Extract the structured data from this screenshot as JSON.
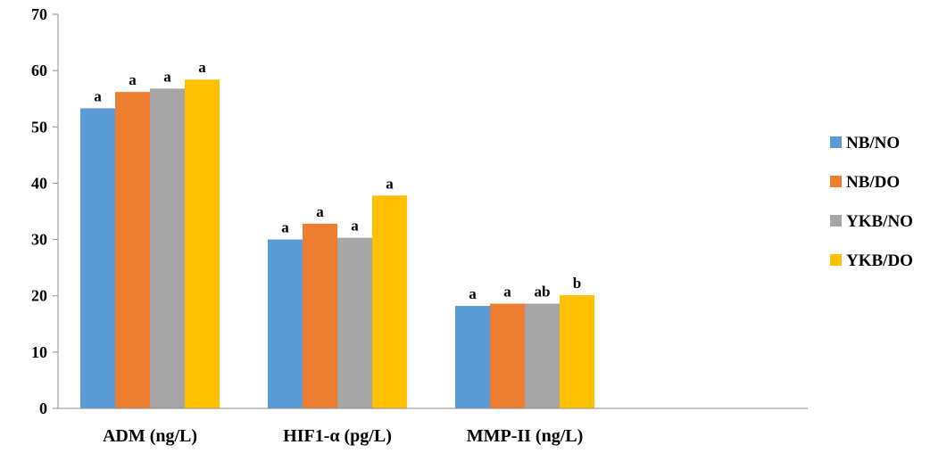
{
  "chart_data": {
    "type": "bar",
    "categories": [
      "ADM (ng/L)",
      "HIF1-α (pg/L)",
      "MMP-II (ng/L)"
    ],
    "series": [
      {
        "name": "NB/NO",
        "color": "#5B9BD5",
        "values": [
          53.3,
          30.0,
          18.2
        ],
        "labels": [
          "a",
          "a",
          "a"
        ]
      },
      {
        "name": "NB/DO",
        "color": "#ED7D31",
        "values": [
          56.2,
          32.8,
          18.6
        ],
        "labels": [
          "a",
          "a",
          "a"
        ]
      },
      {
        "name": "YKB/NO",
        "color": "#A5A5A5",
        "values": [
          56.8,
          30.3,
          18.6
        ],
        "labels": [
          "a",
          "a",
          "ab"
        ]
      },
      {
        "name": "YKB/DO",
        "color": "#FFC000",
        "values": [
          58.4,
          37.8,
          20.1
        ],
        "labels": [
          "a",
          "a",
          "b"
        ]
      }
    ],
    "yticks": [
      "0",
      "10",
      "20",
      "30",
      "40",
      "50",
      "60",
      "70"
    ],
    "ylim": [
      0,
      70
    ],
    "grid": false,
    "legend": "right"
  }
}
